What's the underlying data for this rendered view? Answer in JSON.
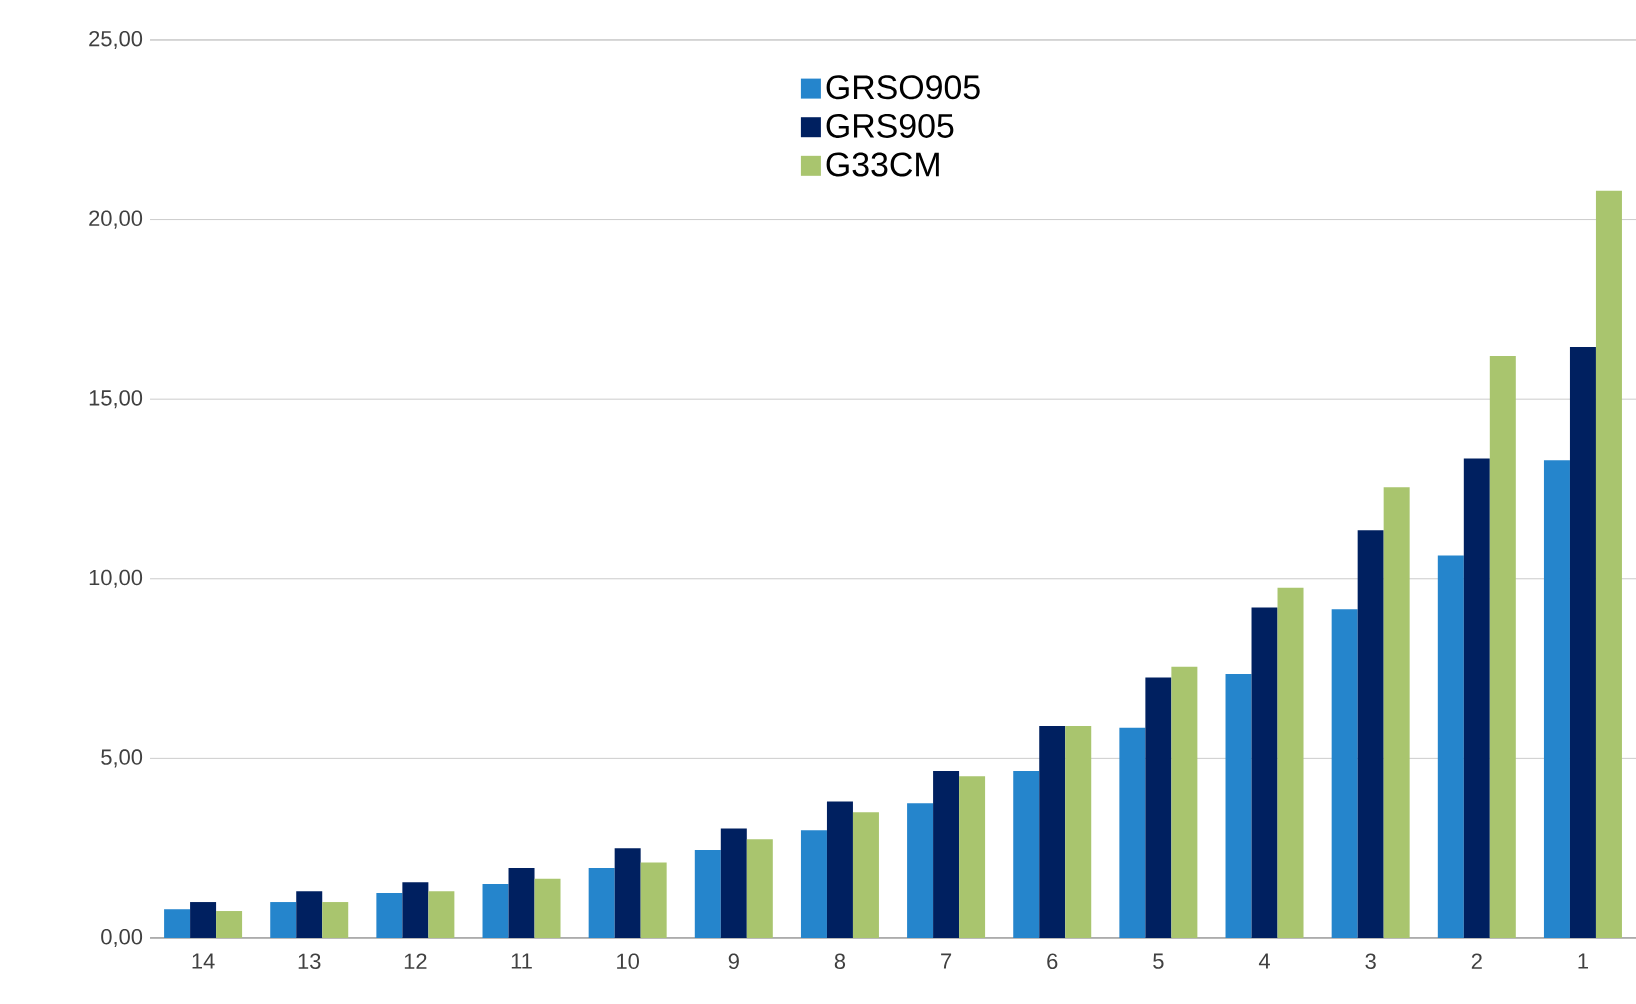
{
  "chart_data": {
    "type": "bar",
    "categories": [
      "14",
      "13",
      "12",
      "11",
      "10",
      "9",
      "8",
      "7",
      "6",
      "5",
      "4",
      "3",
      "2",
      "1"
    ],
    "series": [
      {
        "name": "GRSO905",
        "color": "#2585cc",
        "values": [
          0.8,
          1.0,
          1.25,
          1.5,
          1.95,
          2.45,
          3.0,
          3.75,
          4.65,
          5.85,
          7.35,
          9.15,
          10.65,
          13.3
        ]
      },
      {
        "name": "GRS905",
        "color": "#002060",
        "values": [
          1.0,
          1.3,
          1.55,
          1.95,
          2.5,
          3.05,
          3.8,
          4.65,
          5.9,
          7.25,
          9.2,
          11.35,
          13.35,
          16.45
        ]
      },
      {
        "name": "G33CM",
        "color": "#a9c56e",
        "values": [
          0.75,
          1.0,
          1.3,
          1.65,
          2.1,
          2.75,
          3.5,
          4.5,
          5.9,
          7.55,
          9.75,
          12.55,
          16.2,
          20.8
        ]
      }
    ],
    "ylim": [
      0,
      25
    ],
    "yticks": [
      {
        "value": 0,
        "label": "0,00"
      },
      {
        "value": 5,
        "label": "5,00"
      },
      {
        "value": 10,
        "label": "10,00"
      },
      {
        "value": 15,
        "label": "15,00"
      },
      {
        "value": 20,
        "label": "20,00"
      },
      {
        "value": 25,
        "label": "25,00"
      }
    ],
    "grid": "y",
    "legend": "top"
  }
}
